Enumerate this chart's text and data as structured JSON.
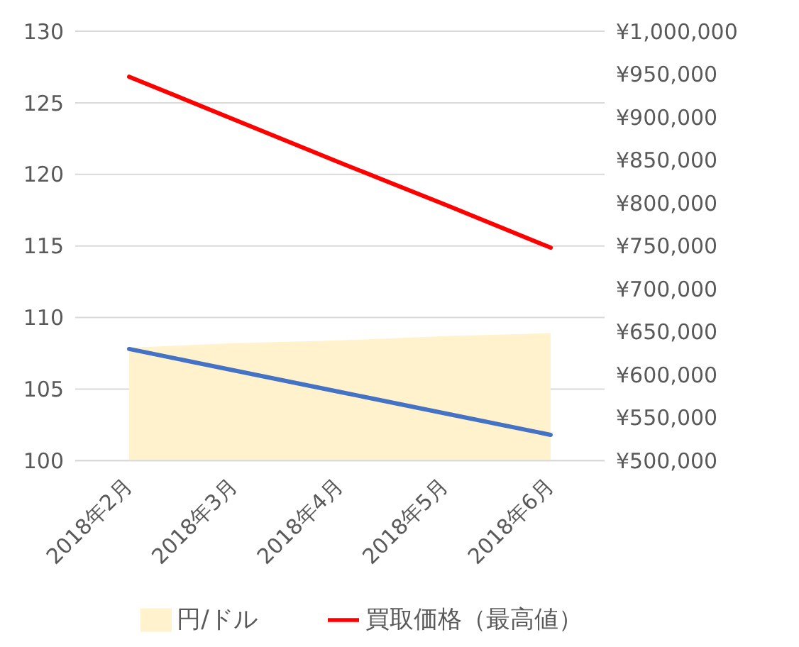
{
  "chart_data": {
    "type": "line",
    "categories": [
      "2018年2月",
      "2018年3月",
      "2018年4月",
      "2018年5月",
      "2018年6月"
    ],
    "series": [
      {
        "name": "円/ドル",
        "type": "area",
        "color": "#fff2cc",
        "values": [
          107.9,
          108.2,
          108.4,
          108.7,
          108.9
        ]
      },
      {
        "color": "#4472c4",
        "values": [
          107.8,
          106.3,
          104.8,
          103.3,
          101.8
        ]
      },
      {
        "name": "買取価格（最高値）",
        "color": "#ff0000",
        "axis": "y2",
        "values": [
          947000,
          897000,
          847000,
          798000,
          748000
        ]
      }
    ],
    "ylim": [
      100,
      130
    ],
    "yticks": [
      100,
      105,
      110,
      115,
      120,
      125,
      130
    ],
    "y2lim": [
      500000,
      1000000
    ],
    "y2ticks": [
      {
        "value": 500000,
        "label": "¥500,000"
      },
      {
        "value": 550000,
        "label": "¥550,000"
      },
      {
        "value": 600000,
        "label": "¥600,000"
      },
      {
        "value": 650000,
        "label": "¥650,000"
      },
      {
        "value": 700000,
        "label": "¥700,000"
      },
      {
        "value": 750000,
        "label": "¥750,000"
      },
      {
        "value": 800000,
        "label": "¥800,000"
      },
      {
        "value": 850000,
        "label": "¥850,000"
      },
      {
        "value": 900000,
        "label": "¥900,000"
      },
      {
        "value": 950000,
        "label": "¥950,000"
      },
      {
        "value": 1000000,
        "label": "¥1,000,000"
      }
    ],
    "grid": "y",
    "legend": "bottom",
    "marker": "none",
    "line_style": "solid"
  }
}
